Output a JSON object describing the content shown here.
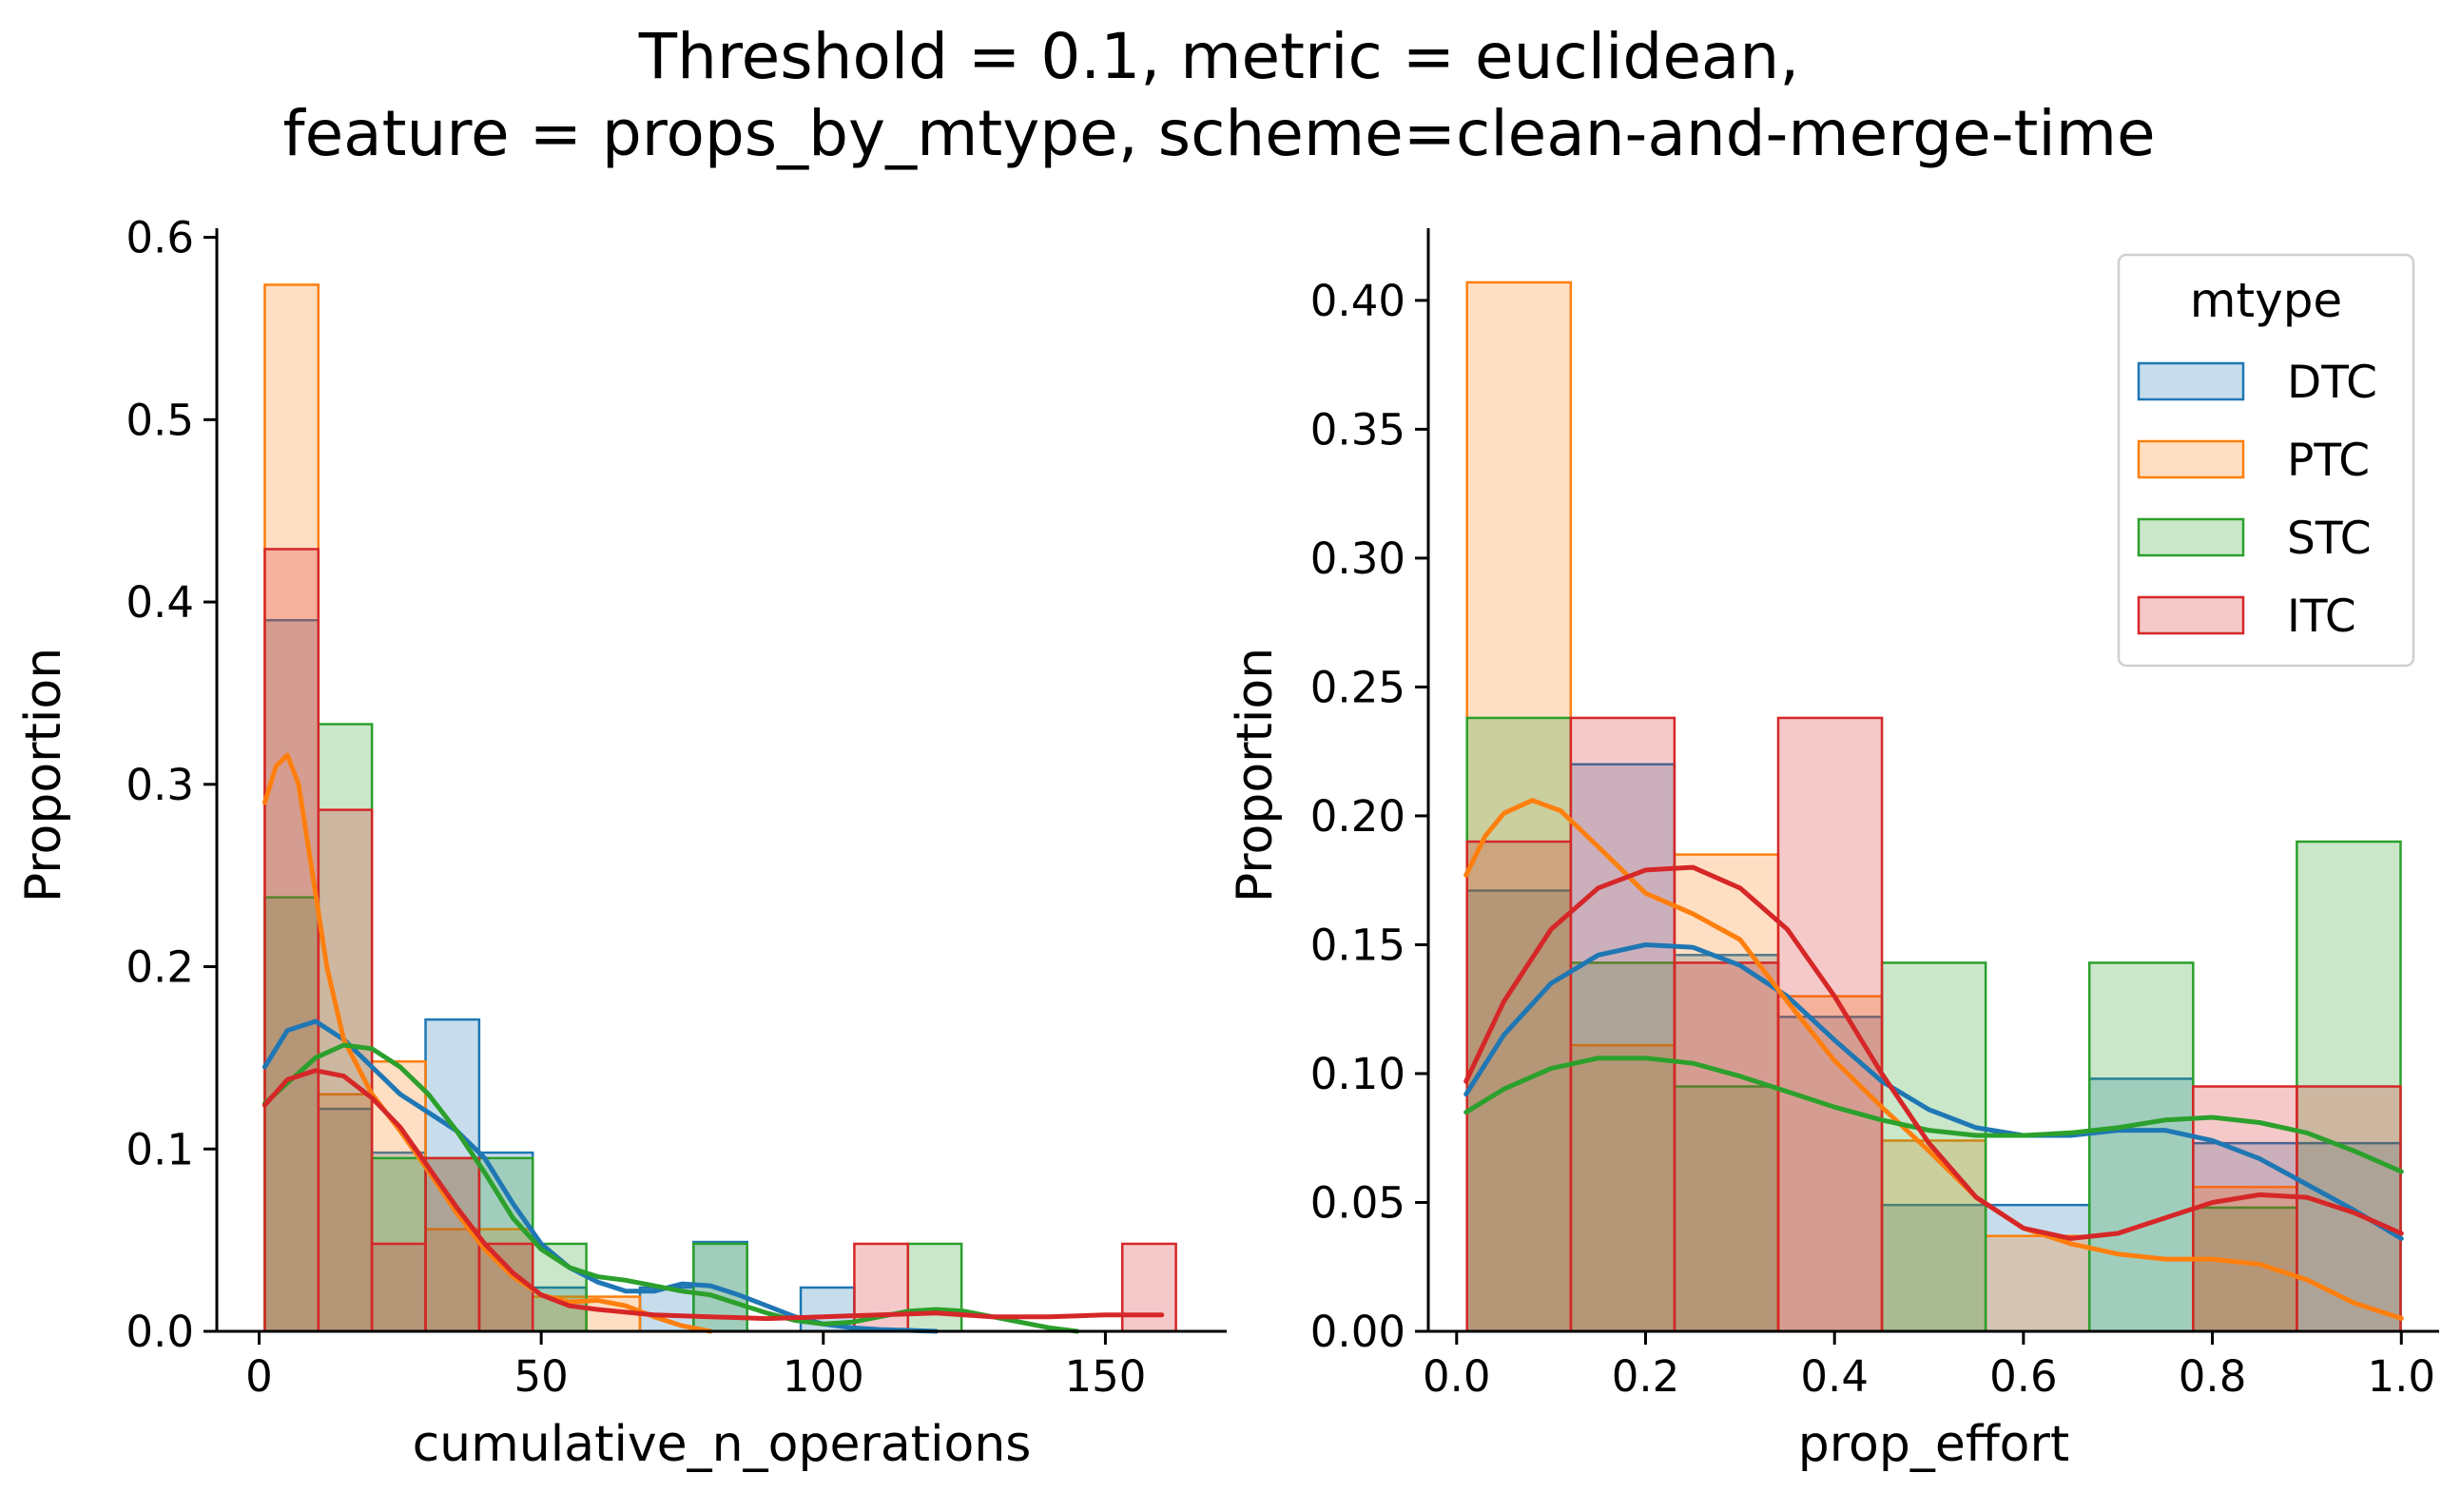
{
  "figure": {
    "title_line1": "Threshold = 0.1, metric = euclidean,",
    "title_line2": "feature = props_by_mtype, scheme=clean-and-merge-time"
  },
  "colors": {
    "DTC": "#1f77b4",
    "PTC": "#ff7f0e",
    "STC": "#2ca02c",
    "ITC": "#d62728"
  },
  "legend": {
    "title": "mtype",
    "location": "top-right of right panel",
    "entries": [
      "DTC",
      "PTC",
      "STC",
      "ITC"
    ]
  },
  "chart_data": [
    {
      "type": "histogram",
      "xlabel": "cumulative_n_operations",
      "ylabel": "Proportion",
      "xlim": [
        -7.5,
        171.5
      ],
      "ylim": [
        0,
        0.605
      ],
      "xticks": [
        0,
        50,
        100,
        150
      ],
      "xtick_labels": [
        "0",
        "50",
        "100",
        "150"
      ],
      "yticks": [
        0,
        0.1,
        0.2,
        0.3,
        0.4,
        0.5,
        0.6
      ],
      "ytick_labels": [
        "0.0",
        "0.1",
        "0.2",
        "0.3",
        "0.4",
        "0.5",
        "0.6"
      ],
      "grid": false,
      "kde": true,
      "bin_edges": [
        1,
        10.5,
        20,
        29.5,
        39,
        48.5,
        58,
        67.5,
        77,
        86.5,
        96,
        105.5,
        115,
        124.5,
        134,
        143.5,
        153,
        162.5
      ],
      "series": [
        {
          "name": "DTC",
          "values": [
            0.39,
            0.122,
            0.098,
            0.171,
            0.098,
            0.024,
            0,
            0.024,
            0.049,
            0,
            0.024,
            0,
            0,
            0,
            0,
            0,
            0
          ]
        },
        {
          "name": "PTC",
          "values": [
            0.574,
            0.13,
            0.148,
            0.056,
            0.056,
            0.019,
            0.019,
            0,
            0,
            0,
            0,
            0,
            0,
            0,
            0,
            0,
            0
          ]
        },
        {
          "name": "STC",
          "values": [
            0.238,
            0.333,
            0.095,
            0.095,
            0.095,
            0.048,
            0,
            0,
            0.048,
            0,
            0,
            0,
            0.048,
            0,
            0,
            0,
            0
          ]
        },
        {
          "name": "ITC",
          "values": [
            0.429,
            0.286,
            0.048,
            0.095,
            0.048,
            0,
            0,
            0,
            0,
            0,
            0,
            0.048,
            0,
            0,
            0,
            0,
            0.048
          ]
        }
      ],
      "kde_curves": [
        {
          "name": "DTC",
          "x": [
            1,
            5,
            10,
            15,
            20,
            25,
            30,
            35,
            40,
            45,
            50,
            55,
            60,
            65,
            70,
            75,
            80,
            85,
            90,
            95,
            100,
            105,
            110,
            115,
            120
          ],
          "y": [
            0.145,
            0.165,
            0.17,
            0.16,
            0.145,
            0.13,
            0.12,
            0.11,
            0.095,
            0.07,
            0.048,
            0.035,
            0.027,
            0.022,
            0.022,
            0.026,
            0.025,
            0.02,
            0.014,
            0.008,
            0.004,
            0.002,
            0.001,
            0.0005,
            0
          ]
        },
        {
          "name": "PTC",
          "x": [
            1,
            3,
            5,
            7,
            9,
            12,
            15,
            20,
            25,
            30,
            35,
            40,
            45,
            50,
            55,
            60,
            65,
            70,
            75,
            80
          ],
          "y": [
            0.29,
            0.31,
            0.316,
            0.3,
            0.26,
            0.2,
            0.16,
            0.13,
            0.11,
            0.088,
            0.065,
            0.045,
            0.03,
            0.02,
            0.016,
            0.017,
            0.014,
            0.008,
            0.003,
            0
          ]
        },
        {
          "name": "STC",
          "x": [
            1,
            10,
            15,
            20,
            25,
            30,
            35,
            40,
            45,
            50,
            55,
            60,
            65,
            70,
            75,
            80,
            85,
            90,
            95,
            100,
            105,
            110,
            115,
            120,
            125,
            130,
            135,
            140,
            145
          ],
          "y": [
            0.125,
            0.15,
            0.157,
            0.155,
            0.145,
            0.13,
            0.11,
            0.087,
            0.062,
            0.045,
            0.035,
            0.03,
            0.028,
            0.025,
            0.022,
            0.02,
            0.015,
            0.01,
            0.006,
            0.004,
            0.005,
            0.008,
            0.011,
            0.012,
            0.011,
            0.008,
            0.005,
            0.002,
            0
          ]
        },
        {
          "name": "ITC",
          "x": [
            1,
            5,
            10,
            15,
            20,
            25,
            30,
            35,
            40,
            45,
            50,
            55,
            60,
            70,
            80,
            90,
            100,
            110,
            120,
            130,
            140,
            150,
            160
          ],
          "y": [
            0.124,
            0.138,
            0.143,
            0.14,
            0.128,
            0.112,
            0.09,
            0.068,
            0.048,
            0.032,
            0.02,
            0.014,
            0.012,
            0.009,
            0.008,
            0.007,
            0.008,
            0.009,
            0.01,
            0.008,
            0.008,
            0.009,
            0.009
          ]
        }
      ]
    },
    {
      "type": "histogram",
      "xlabel": "prop_effort",
      "ylabel": "Proportion",
      "xlim": [
        -0.03,
        1.04
      ],
      "ylim": [
        0,
        0.428
      ],
      "xticks": [
        0,
        0.2,
        0.4,
        0.6,
        0.8,
        1.0
      ],
      "xtick_labels": [
        "0.0",
        "0.2",
        "0.4",
        "0.6",
        "0.8",
        "1.0"
      ],
      "yticks": [
        0,
        0.05,
        0.1,
        0.15,
        0.2,
        0.25,
        0.3,
        0.35,
        0.4
      ],
      "ytick_labels": [
        "0.00",
        "0.05",
        "0.10",
        "0.15",
        "0.20",
        "0.25",
        "0.30",
        "0.35",
        "0.40"
      ],
      "grid": false,
      "kde": true,
      "bin_edges": [
        0.011,
        0.1208,
        0.2306,
        0.3404,
        0.4502,
        0.56,
        0.6698,
        0.7796,
        0.8894,
        0.9992
      ],
      "series": [
        {
          "name": "DTC",
          "values": [
            0.171,
            0.22,
            0.146,
            0.122,
            0.049,
            0.049,
            0.098,
            0.073,
            0.073
          ]
        },
        {
          "name": "PTC",
          "values": [
            0.407,
            0.111,
            0.185,
            0.13,
            0.074,
            0.037,
            0,
            0.056,
            0
          ]
        },
        {
          "name": "STC",
          "values": [
            0.238,
            0.143,
            0.095,
            0,
            0.143,
            0,
            0.143,
            0.048,
            0.19
          ]
        },
        {
          "name": "ITC",
          "values": [
            0.19,
            0.238,
            0.143,
            0.238,
            0,
            0,
            0,
            0.095,
            0.095
          ]
        }
      ],
      "kde_curves": [
        {
          "name": "DTC",
          "x": [
            0.01,
            0.05,
            0.1,
            0.15,
            0.2,
            0.25,
            0.3,
            0.35,
            0.4,
            0.45,
            0.5,
            0.55,
            0.6,
            0.65,
            0.7,
            0.75,
            0.8,
            0.85,
            0.9,
            0.95,
            1.0
          ],
          "y": [
            0.092,
            0.115,
            0.135,
            0.146,
            0.15,
            0.149,
            0.142,
            0.13,
            0.113,
            0.097,
            0.086,
            0.079,
            0.076,
            0.076,
            0.078,
            0.078,
            0.074,
            0.067,
            0.057,
            0.047,
            0.036
          ]
        },
        {
          "name": "PTC",
          "x": [
            0.01,
            0.03,
            0.05,
            0.08,
            0.11,
            0.15,
            0.2,
            0.25,
            0.3,
            0.35,
            0.4,
            0.45,
            0.5,
            0.55,
            0.6,
            0.65,
            0.7,
            0.75,
            0.8,
            0.85,
            0.9,
            0.95,
            1.0
          ],
          "y": [
            0.177,
            0.192,
            0.201,
            0.206,
            0.202,
            0.188,
            0.17,
            0.162,
            0.152,
            0.128,
            0.105,
            0.087,
            0.07,
            0.052,
            0.04,
            0.034,
            0.03,
            0.028,
            0.028,
            0.026,
            0.02,
            0.011,
            0.005
          ]
        },
        {
          "name": "STC",
          "x": [
            0.01,
            0.05,
            0.1,
            0.15,
            0.2,
            0.25,
            0.3,
            0.35,
            0.4,
            0.45,
            0.5,
            0.55,
            0.6,
            0.65,
            0.7,
            0.75,
            0.8,
            0.85,
            0.9,
            0.95,
            1.0
          ],
          "y": [
            0.085,
            0.094,
            0.102,
            0.106,
            0.106,
            0.104,
            0.099,
            0.093,
            0.087,
            0.082,
            0.078,
            0.076,
            0.076,
            0.077,
            0.079,
            0.082,
            0.083,
            0.081,
            0.077,
            0.07,
            0.062
          ]
        },
        {
          "name": "ITC",
          "x": [
            0.01,
            0.05,
            0.1,
            0.15,
            0.2,
            0.25,
            0.3,
            0.35,
            0.4,
            0.45,
            0.5,
            0.55,
            0.6,
            0.65,
            0.7,
            0.75,
            0.8,
            0.85,
            0.9,
            0.95,
            1.0
          ],
          "y": [
            0.097,
            0.128,
            0.156,
            0.172,
            0.179,
            0.18,
            0.172,
            0.156,
            0.13,
            0.1,
            0.073,
            0.052,
            0.04,
            0.036,
            0.038,
            0.044,
            0.05,
            0.053,
            0.052,
            0.046,
            0.038
          ]
        }
      ]
    }
  ]
}
